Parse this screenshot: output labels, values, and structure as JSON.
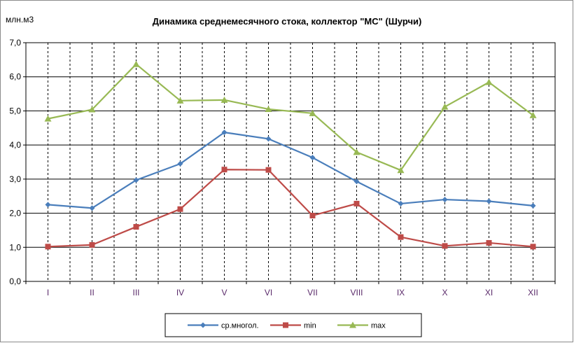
{
  "chart_data": {
    "type": "line",
    "title": "Динамика среднемесячного  стока, коллектор \"МС\" (Шурчи)",
    "ylabel": "млн.м3",
    "xlabel": "",
    "ylim": [
      0,
      7
    ],
    "ytick_step": 1,
    "ytick_labels": [
      "0,0",
      "1,0",
      "2,0",
      "3,0",
      "4,0",
      "5,0",
      "6,0",
      "7,0"
    ],
    "categories": [
      "I",
      "II",
      "III",
      "IV",
      "V",
      "VI",
      "VII",
      "VIII",
      "IX",
      "X",
      "XI",
      "XII"
    ],
    "grid": "on",
    "legend_position": "bottom",
    "series": [
      {
        "name": "ср.многол.",
        "color": "#4a7ebb",
        "marker": "diamond",
        "values": [
          2.25,
          2.15,
          2.97,
          3.45,
          4.37,
          4.18,
          3.63,
          2.93,
          2.28,
          2.4,
          2.35,
          2.22
        ]
      },
      {
        "name": "min",
        "color": "#be4b48",
        "marker": "square",
        "values": [
          1.02,
          1.07,
          1.6,
          2.12,
          3.28,
          3.27,
          1.93,
          2.28,
          1.3,
          1.04,
          1.13,
          1.02
        ]
      },
      {
        "name": "max",
        "color": "#98b954",
        "marker": "triangle",
        "values": [
          4.77,
          5.04,
          6.37,
          5.3,
          5.32,
          5.05,
          4.93,
          3.79,
          3.26,
          5.12,
          5.84,
          4.87
        ]
      }
    ]
  }
}
